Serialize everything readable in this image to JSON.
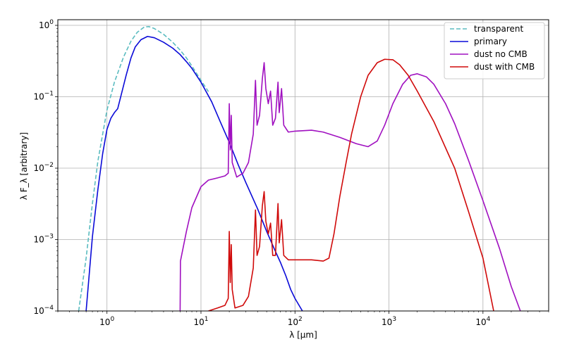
{
  "chart_data": {
    "type": "line",
    "xlabel": "λ [μm]",
    "ylabel": "λ F_λ [arbitrary]",
    "xscale": "log",
    "yscale": "log",
    "xlim": [
      0.3,
      50000
    ],
    "ylim": [
      0.0001,
      1.2
    ],
    "grid": true,
    "legend_position": "top-right",
    "x_ticks": [
      {
        "value": 1,
        "label": "10^0"
      },
      {
        "value": 10,
        "label": "10^1"
      },
      {
        "value": 100,
        "label": "10^2"
      },
      {
        "value": 1000,
        "label": "10^3"
      },
      {
        "value": 10000,
        "label": "10^4"
      }
    ],
    "y_ticks": [
      {
        "value": 0.0001,
        "label": "10^-4"
      },
      {
        "value": 0.001,
        "label": "10^-3"
      },
      {
        "value": 0.01,
        "label": "10^-2"
      },
      {
        "value": 0.1,
        "label": "10^-1"
      },
      {
        "value": 1,
        "label": "10^0"
      }
    ],
    "series": [
      {
        "name": "transparent",
        "color": "#5bbcc0",
        "dash": "dashed",
        "points": [
          [
            0.5,
            0.0001
          ],
          [
            0.6,
            0.00055
          ],
          [
            0.7,
            0.0032
          ],
          [
            0.8,
            0.0125
          ],
          [
            0.9,
            0.03
          ],
          [
            1.0,
            0.065
          ],
          [
            1.2,
            0.16
          ],
          [
            1.5,
            0.36
          ],
          [
            1.8,
            0.6
          ],
          [
            2.1,
            0.8
          ],
          [
            2.5,
            0.95
          ],
          [
            2.8,
            0.96
          ],
          [
            3.2,
            0.9
          ],
          [
            4.0,
            0.75
          ],
          [
            5.0,
            0.58
          ],
          [
            6.0,
            0.45
          ],
          [
            7.0,
            0.35
          ],
          [
            8.0,
            0.27
          ],
          [
            10.0,
            0.17
          ],
          [
            12.0,
            0.118
          ]
        ]
      },
      {
        "name": "primary",
        "color": "#0a0ad8",
        "dash": "solid",
        "points": [
          [
            0.6,
            0.0001
          ],
          [
            0.7,
            0.0011
          ],
          [
            0.8,
            0.005
          ],
          [
            0.9,
            0.016
          ],
          [
            1.0,
            0.035
          ],
          [
            1.1,
            0.05
          ],
          [
            1.2,
            0.06
          ],
          [
            1.3,
            0.068
          ],
          [
            1.4,
            0.1
          ],
          [
            1.6,
            0.2
          ],
          [
            1.8,
            0.35
          ],
          [
            2.0,
            0.5
          ],
          [
            2.3,
            0.63
          ],
          [
            2.7,
            0.7
          ],
          [
            3.2,
            0.67
          ],
          [
            4.0,
            0.58
          ],
          [
            5.0,
            0.48
          ],
          [
            6.0,
            0.39
          ],
          [
            7.0,
            0.31
          ],
          [
            8.0,
            0.25
          ],
          [
            10.0,
            0.16
          ],
          [
            13.0,
            0.085
          ],
          [
            16.0,
            0.045
          ],
          [
            20.0,
            0.023
          ],
          [
            25.0,
            0.011
          ],
          [
            30.0,
            0.0063
          ],
          [
            40.0,
            0.0027
          ],
          [
            50.0,
            0.0013
          ],
          [
            60.0,
            0.00075
          ],
          [
            70.0,
            0.00048
          ],
          [
            80.0,
            0.00031
          ],
          [
            90.0,
            0.0002
          ],
          [
            100.0,
            0.00015
          ],
          [
            120.0,
            0.0001
          ]
        ]
      },
      {
        "name": "dust no CMB",
        "color": "#a010c0",
        "dash": "solid",
        "points": [
          [
            6.0,
            0.0001
          ],
          [
            6.05,
            0.0005
          ],
          [
            7.0,
            0.0013
          ],
          [
            8.0,
            0.0028
          ],
          [
            10.0,
            0.0055
          ],
          [
            12.0,
            0.0068
          ],
          [
            15.0,
            0.0073
          ],
          [
            18.0,
            0.0078
          ],
          [
            19.5,
            0.0085
          ],
          [
            20.0,
            0.08
          ],
          [
            20.5,
            0.018
          ],
          [
            21.0,
            0.055
          ],
          [
            21.5,
            0.012
          ],
          [
            24.0,
            0.0075
          ],
          [
            28.0,
            0.0085
          ],
          [
            32.0,
            0.012
          ],
          [
            36.0,
            0.03
          ],
          [
            38.0,
            0.17
          ],
          [
            39.5,
            0.04
          ],
          [
            42.0,
            0.055
          ],
          [
            45.0,
            0.18
          ],
          [
            47.0,
            0.3
          ],
          [
            49.0,
            0.13
          ],
          [
            52.0,
            0.08
          ],
          [
            55.0,
            0.12
          ],
          [
            58.0,
            0.04
          ],
          [
            62.0,
            0.05
          ],
          [
            66.0,
            0.16
          ],
          [
            68.0,
            0.06
          ],
          [
            72.0,
            0.13
          ],
          [
            76.0,
            0.04
          ],
          [
            85.0,
            0.032
          ],
          [
            100.0,
            0.033
          ],
          [
            150.0,
            0.034
          ],
          [
            200.0,
            0.032
          ],
          [
            300.0,
            0.027
          ],
          [
            450.0,
            0.022
          ],
          [
            600.0,
            0.02
          ],
          [
            750.0,
            0.024
          ],
          [
            900.0,
            0.04
          ],
          [
            1100.0,
            0.08
          ],
          [
            1400.0,
            0.15
          ],
          [
            1700.0,
            0.2
          ],
          [
            2000.0,
            0.21
          ],
          [
            2500.0,
            0.19
          ],
          [
            3000.0,
            0.15
          ],
          [
            4000.0,
            0.08
          ],
          [
            5000.0,
            0.042
          ],
          [
            7000.0,
            0.013
          ],
          [
            10000.0,
            0.0035
          ],
          [
            15000.0,
            0.00075
          ],
          [
            20000.0,
            0.00022
          ],
          [
            25000.0,
            0.0001
          ]
        ]
      },
      {
        "name": "dust with CMB",
        "color": "#d00a0a",
        "dash": "solid",
        "points": [
          [
            12.0,
            0.0001
          ],
          [
            15.0,
            0.00011
          ],
          [
            18.0,
            0.00012
          ],
          [
            19.5,
            0.00015
          ],
          [
            20.0,
            0.0013
          ],
          [
            20.5,
            0.00025
          ],
          [
            21.0,
            0.00085
          ],
          [
            21.5,
            0.0002
          ],
          [
            23.0,
            0.00011
          ],
          [
            28.0,
            0.00012
          ],
          [
            32.0,
            0.00016
          ],
          [
            36.0,
            0.0004
          ],
          [
            38.0,
            0.0026
          ],
          [
            39.5,
            0.0006
          ],
          [
            42.0,
            0.0008
          ],
          [
            45.0,
            0.003
          ],
          [
            47.0,
            0.0047
          ],
          [
            49.0,
            0.0018
          ],
          [
            52.0,
            0.0012
          ],
          [
            55.0,
            0.0017
          ],
          [
            58.0,
            0.0006
          ],
          [
            62.0,
            0.0006
          ],
          [
            66.0,
            0.0032
          ],
          [
            68.0,
            0.0009
          ],
          [
            72.0,
            0.0019
          ],
          [
            76.0,
            0.0006
          ],
          [
            85.0,
            0.00052
          ],
          [
            100.0,
            0.00052
          ],
          [
            150.0,
            0.00052
          ],
          [
            200.0,
            0.0005
          ],
          [
            230.0,
            0.00055
          ],
          [
            260.0,
            0.0012
          ],
          [
            300.0,
            0.004
          ],
          [
            350.0,
            0.012
          ],
          [
            400.0,
            0.03
          ],
          [
            500.0,
            0.1
          ],
          [
            600.0,
            0.2
          ],
          [
            750.0,
            0.3
          ],
          [
            900.0,
            0.335
          ],
          [
            1100.0,
            0.33
          ],
          [
            1300.0,
            0.28
          ],
          [
            1600.0,
            0.2
          ],
          [
            2000.0,
            0.12
          ],
          [
            3000.0,
            0.045
          ],
          [
            5000.0,
            0.01
          ],
          [
            7000.0,
            0.0025
          ],
          [
            10000.0,
            0.00055
          ],
          [
            13000.0,
            0.0001
          ]
        ]
      }
    ]
  }
}
